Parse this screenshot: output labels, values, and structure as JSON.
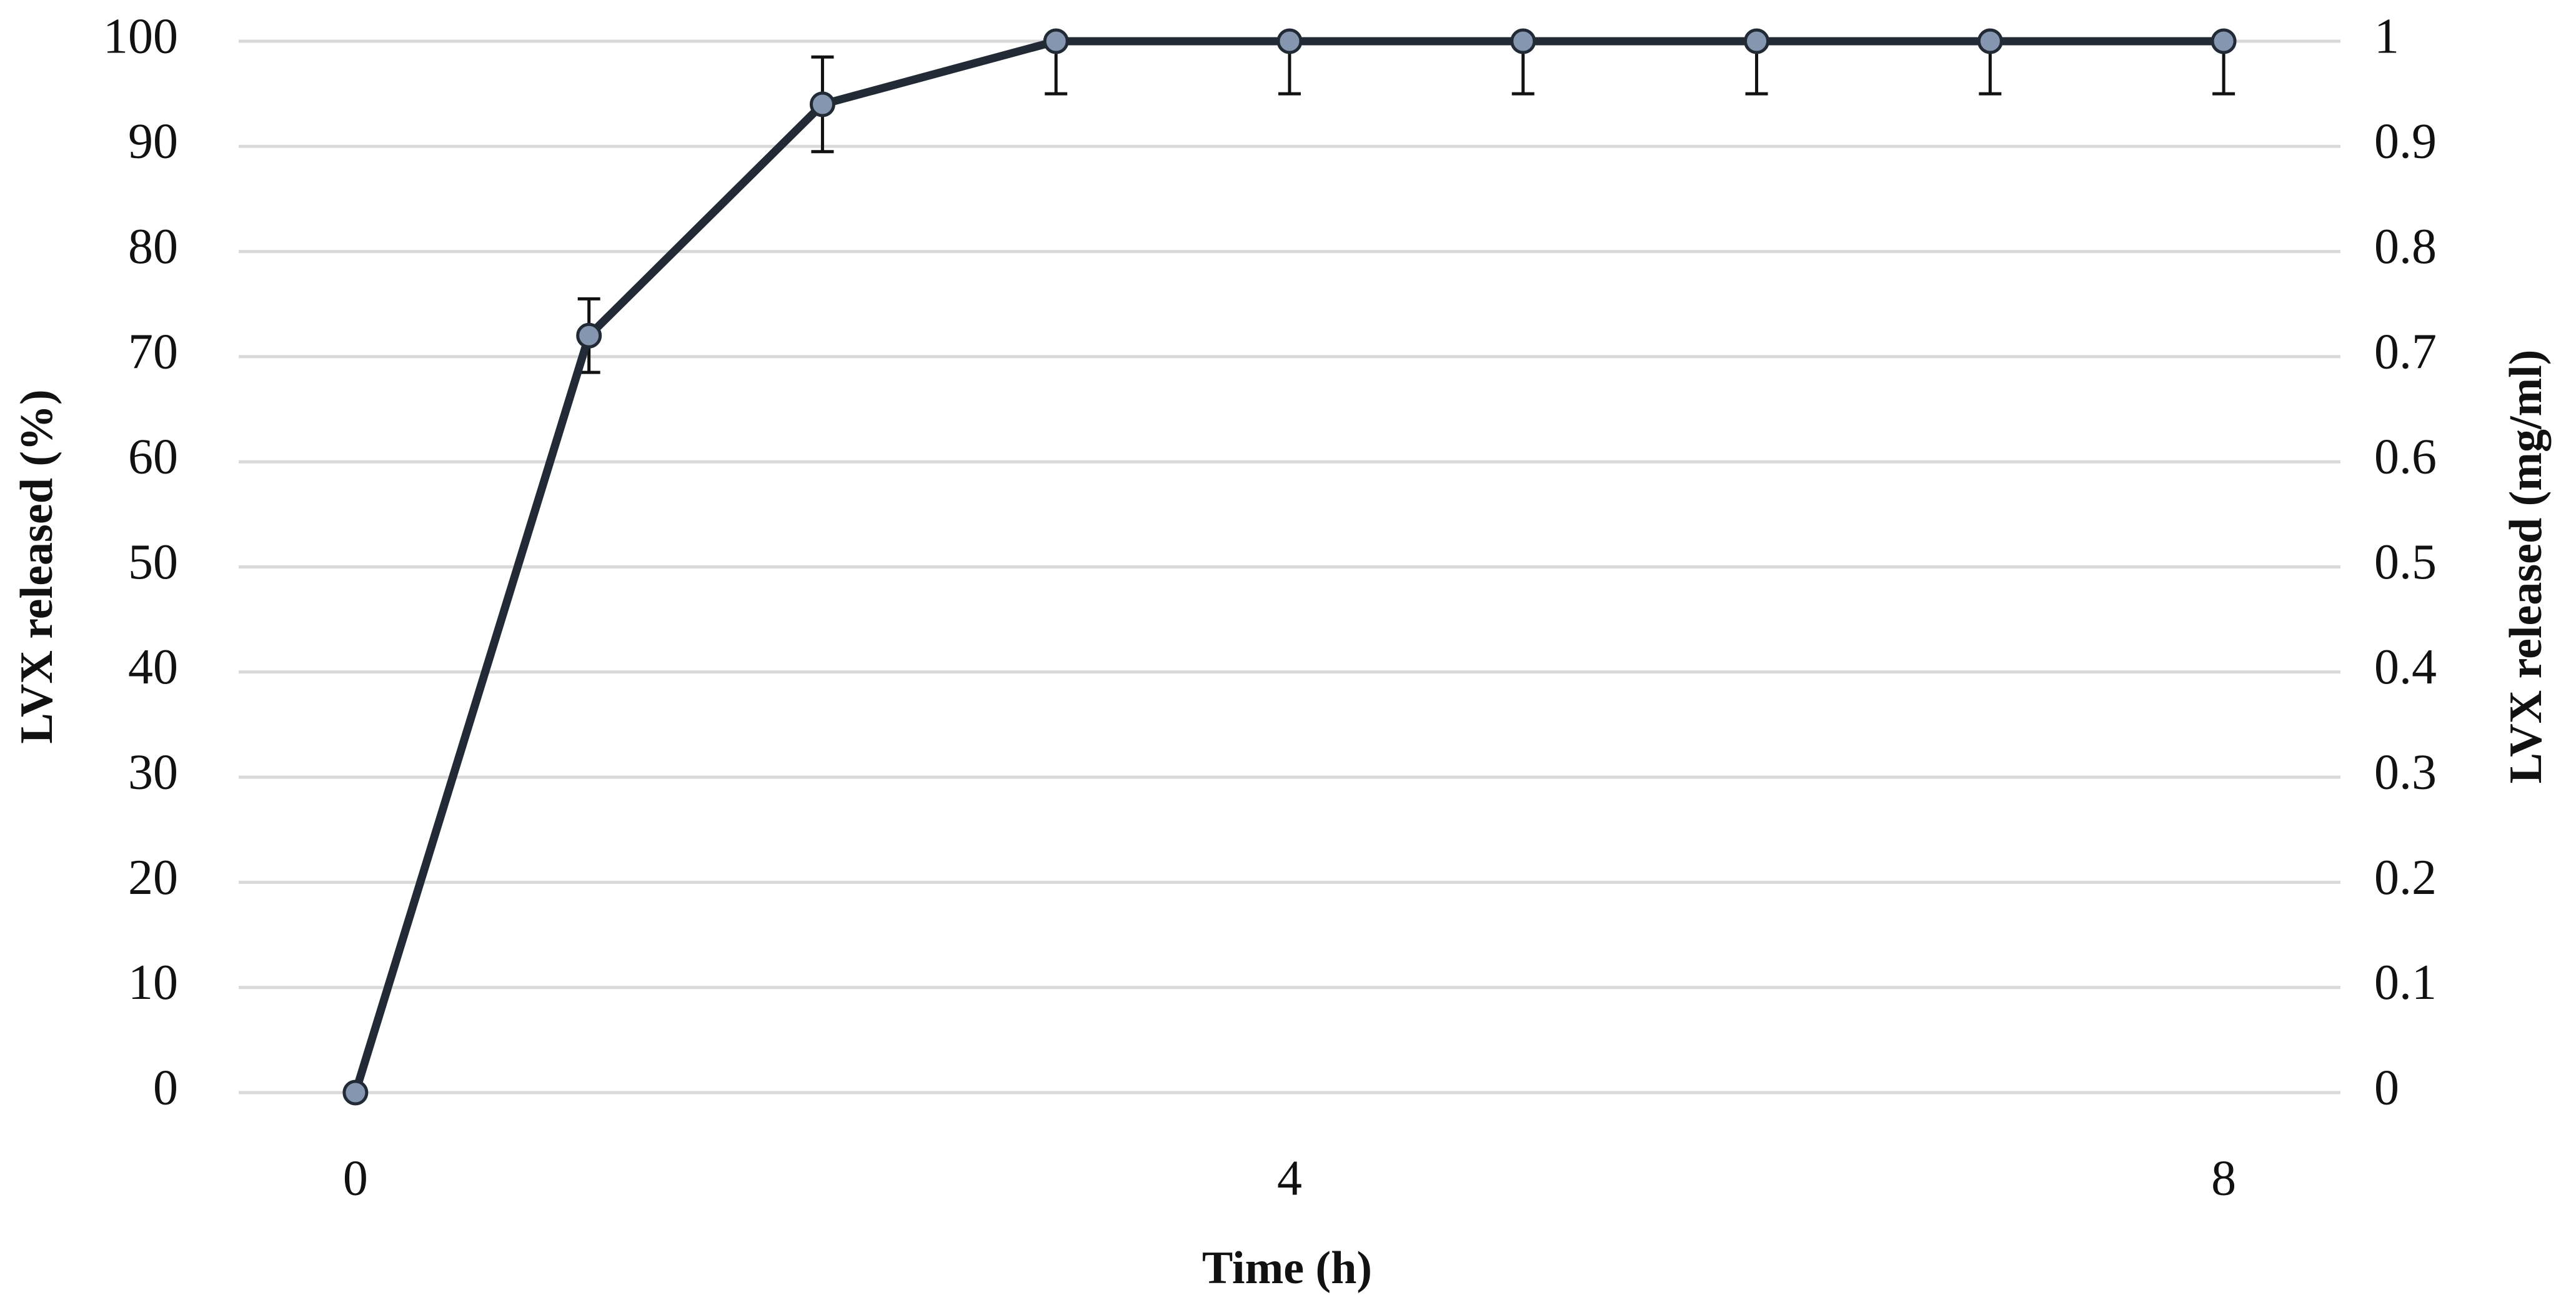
{
  "chart_data": {
    "type": "line",
    "x_label": "Time (h)",
    "y_label": "LVX released  (%)",
    "y2_label": "LVX released (mg/ml)",
    "x": [
      0,
      1,
      2,
      3,
      4,
      5,
      6,
      7,
      8
    ],
    "values": [
      0,
      72,
      94,
      100,
      100,
      100,
      100,
      100,
      100
    ],
    "errors": [
      0,
      3.5,
      4.5,
      5,
      5,
      5,
      5,
      5,
      5
    ],
    "color": "#222a35",
    "marker_color": "#8496b0",
    "xlim": [
      -0.5,
      8.5
    ],
    "xticks": [
      0,
      4,
      8
    ],
    "ylim": [
      0,
      100
    ],
    "yticks": [
      0,
      10,
      20,
      30,
      40,
      50,
      60,
      70,
      80,
      90,
      100
    ],
    "y2lim": [
      0,
      1
    ],
    "y2ticks": [
      0,
      0.1,
      0.2,
      0.3,
      0.4,
      0.5,
      0.6,
      0.7,
      0.8,
      0.9,
      1
    ],
    "grid": true
  }
}
